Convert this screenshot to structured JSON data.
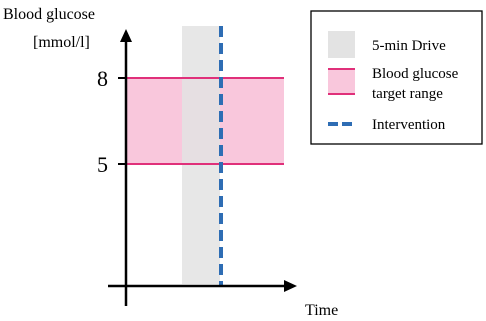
{
  "chart_data": {
    "type": "area",
    "ylabel_line1": "Blood glucose",
    "ylabel_line2": "[mmol/l]",
    "xlabel": "Time",
    "y_ticks": [
      "8",
      "5"
    ],
    "bands": {
      "target_range": {
        "ymin": 5,
        "ymax": 8,
        "name": "Blood glucose target range"
      },
      "drive": {
        "name": "5-min Drive"
      },
      "intervention": {
        "name": "Intervention"
      }
    },
    "legend": {
      "placement": "top-right",
      "items": [
        {
          "label_line1": "5-min Drive",
          "label_line2": ""
        },
        {
          "label_line1": "Blood glucose",
          "label_line2": "target range"
        },
        {
          "label_line1": "Intervention",
          "label_line2": ""
        }
      ]
    },
    "colors": {
      "target_fill": "#f9c7dc",
      "target_line": "#e0307a",
      "drive_fill": "#e3e3e3",
      "intervention": "#2e6db4",
      "axis": "#000000"
    },
    "grid": false
  }
}
